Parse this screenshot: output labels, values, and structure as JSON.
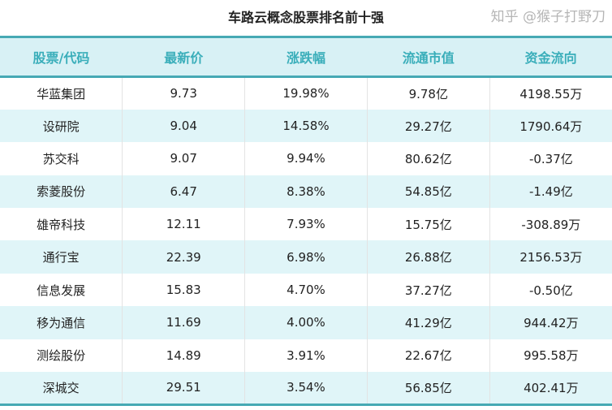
{
  "title": "车路云概念股票排名前十强",
  "columns": [
    "股票/代码",
    "最新价",
    "涨跌幅",
    "流通市值",
    "资金流向"
  ],
  "rows": [
    [
      "华蓝集团",
      "9.73",
      "19.98%",
      "9.78亿",
      "4198.55万"
    ],
    [
      "设研院",
      "9.04",
      "14.58%",
      "29.27亿",
      "1790.64万"
    ],
    [
      "苏交科",
      "9.07",
      "9.94%",
      "80.62亿",
      "-0.37亿"
    ],
    [
      "索菱股份",
      "6.47",
      "8.38%",
      "54.85亿",
      "-1.49亿"
    ],
    [
      "雄帝科技",
      "12.11",
      "7.93%",
      "15.75亿",
      "-308.89万"
    ],
    [
      "通行宝",
      "22.39",
      "6.98%",
      "26.88亿",
      "2156.53万"
    ],
    [
      "信息发展",
      "15.83",
      "4.70%",
      "37.27亿",
      "-0.50亿"
    ],
    [
      "移为通信",
      "11.69",
      "4.00%",
      "41.29亿",
      "944.42万"
    ],
    [
      "测绘股份",
      "14.89",
      "3.91%",
      "22.67亿",
      "995.58万"
    ],
    [
      "深城交",
      "29.51",
      "3.54%",
      "56.85亿",
      "402.41万"
    ]
  ],
  "watermark": "知乎 @猴子打野刀",
  "colors": {
    "accent": "#46a9b4",
    "header_bg": "#d8f1f5",
    "header_text": "#3aaeba",
    "alt_row": "#e0f5f8"
  }
}
